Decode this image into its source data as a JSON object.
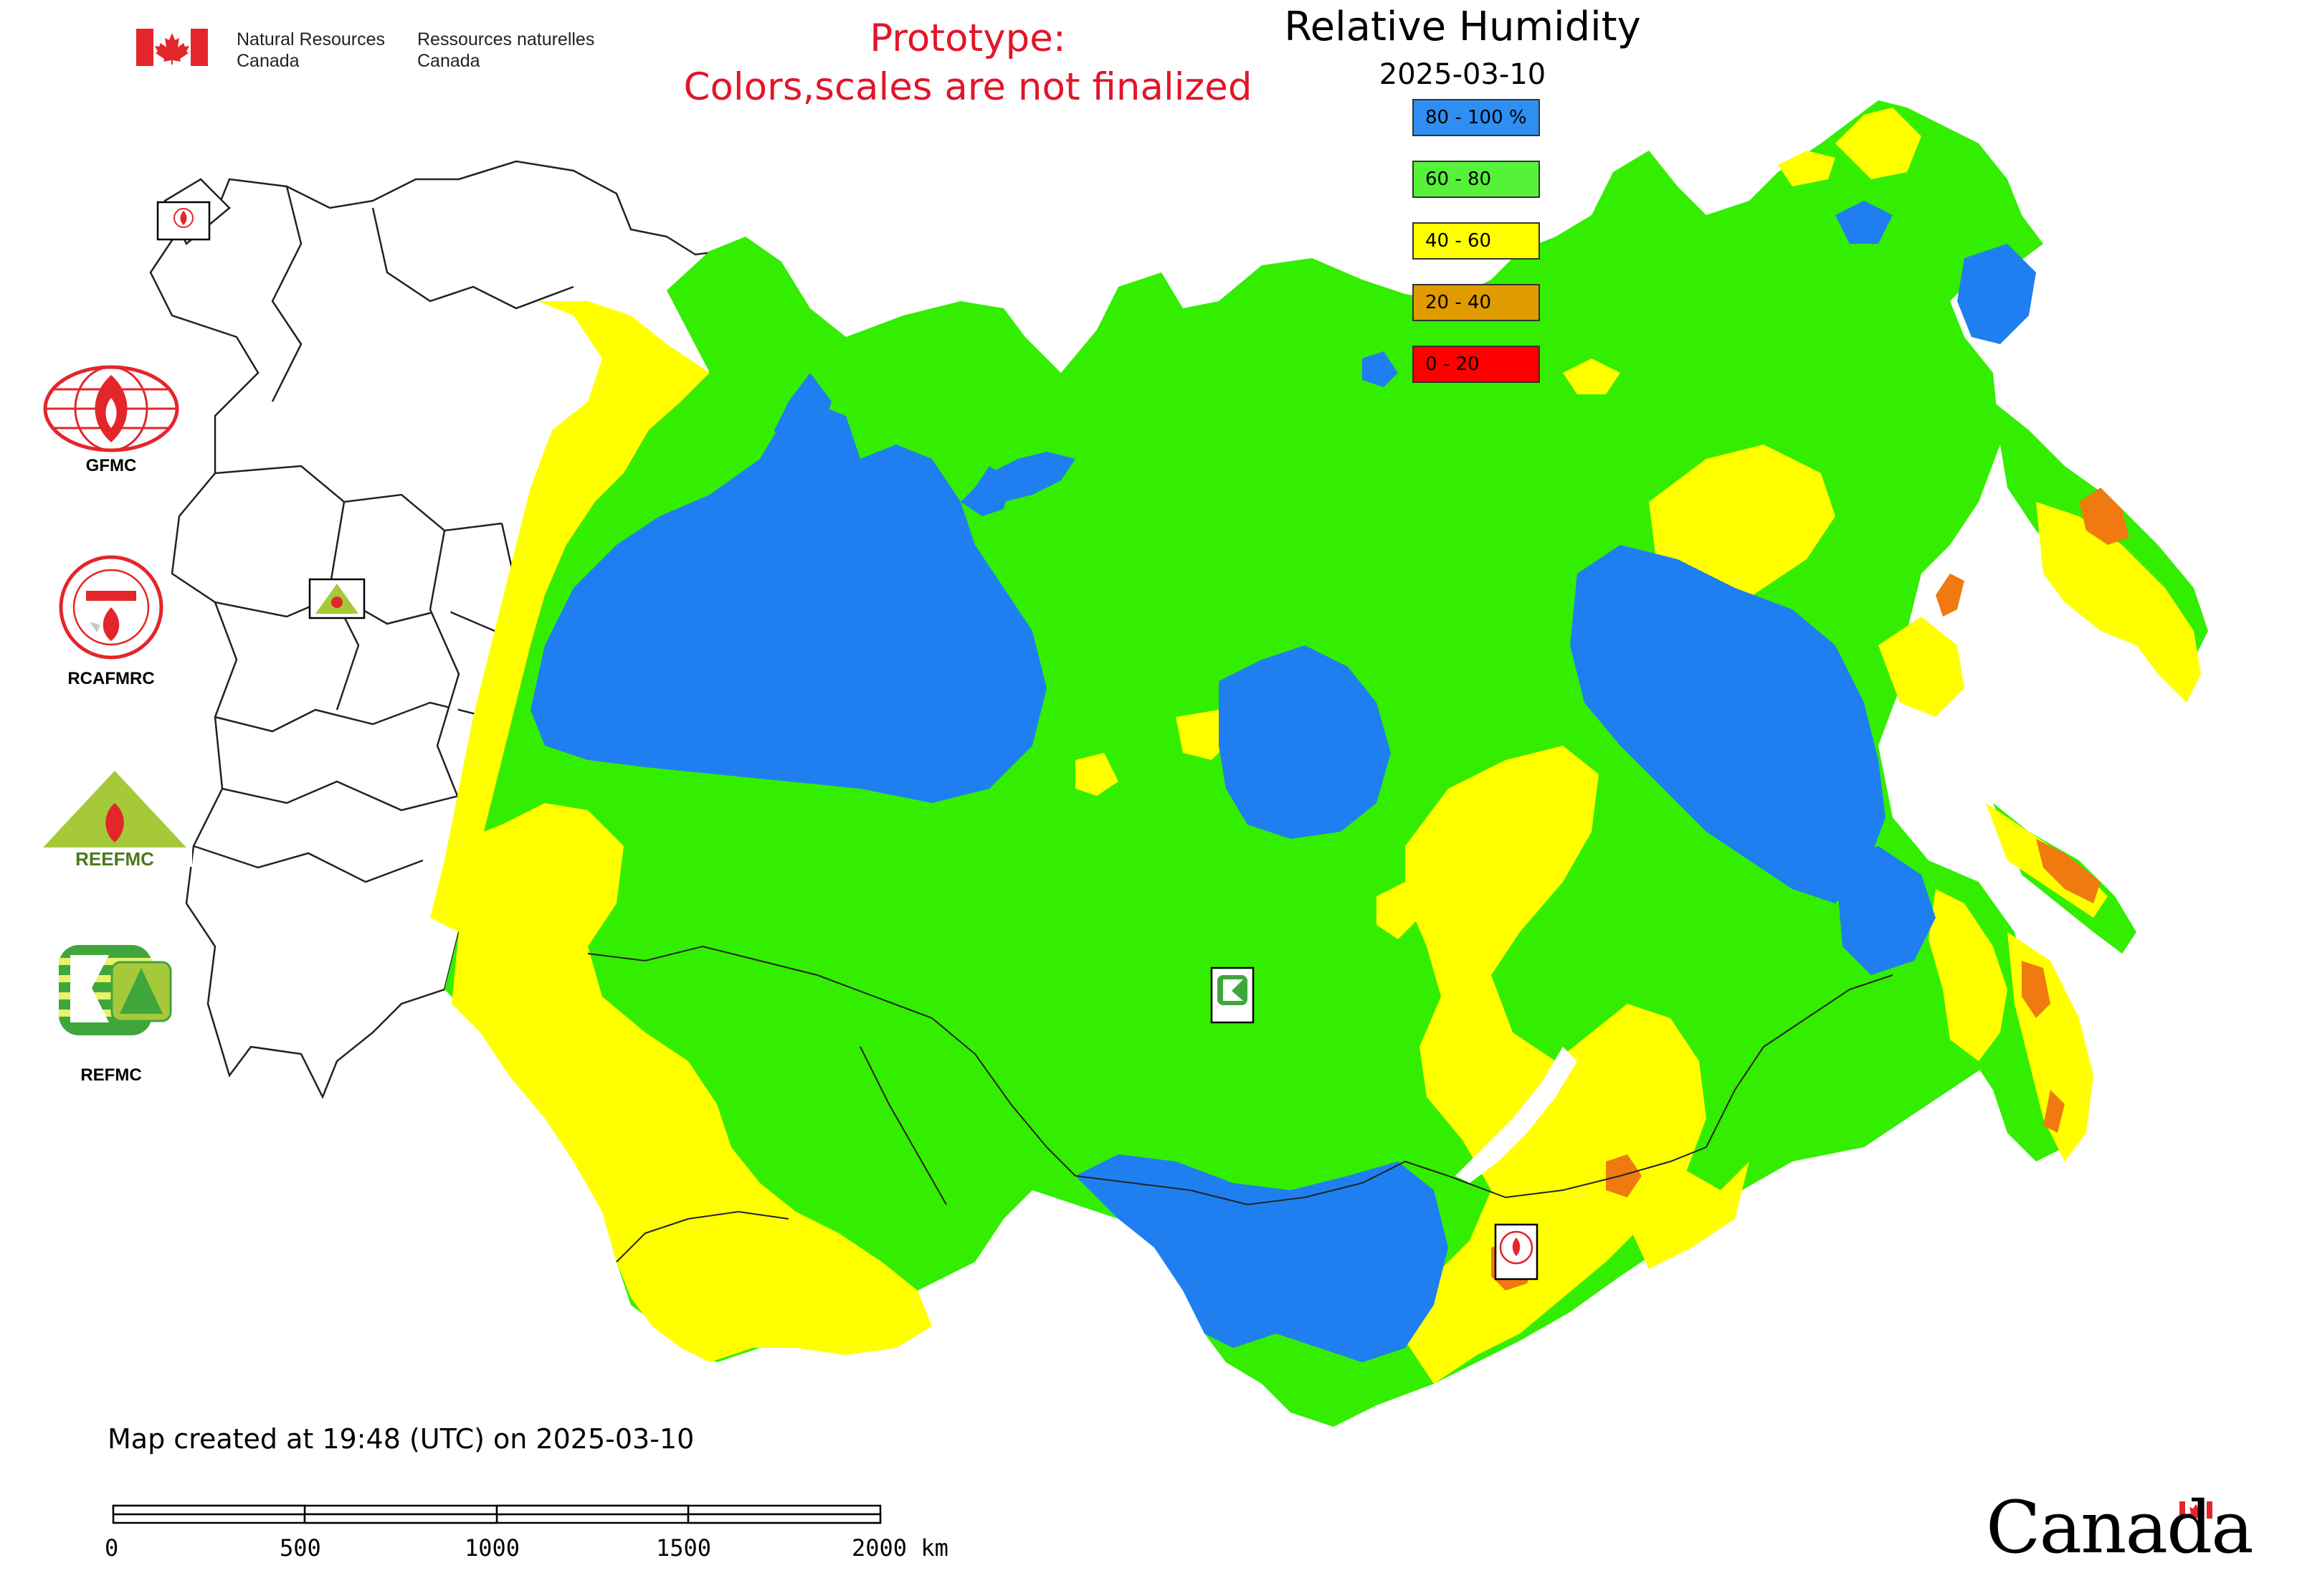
{
  "header": {
    "agency_en_line1": "Natural Resources",
    "agency_en_line2": "Canada",
    "agency_fr_line1": "Ressources naturelles",
    "agency_fr_line2": "Canada",
    "prototype_line1": "Prototype:",
    "prototype_line2": "Colors,scales are not finalized",
    "title": "Relative Humidity",
    "date": "2025-03-10"
  },
  "legend": [
    {
      "label": "80 - 100 %",
      "color": "#2f8ef2"
    },
    {
      "label": "60 - 80",
      "color": "#55f23a"
    },
    {
      "label": "40 - 60",
      "color": "#ffff00"
    },
    {
      "label": "20 - 40",
      "color": "#e09b00"
    },
    {
      "label": "0 - 20",
      "color": "#ff0000"
    }
  ],
  "colors": {
    "humidity_80_100": "#1f7ff0",
    "humidity_60_80": "#33ee00",
    "humidity_40_60": "#ffff00",
    "humidity_20_40": "#f07a10",
    "prototype_text": "#e2152a",
    "flag_red": "#e3262b"
  },
  "logos": [
    {
      "icon": "gfmc-logo-icon",
      "label": "GFMC"
    },
    {
      "icon": "rcafmrc-logo-icon",
      "label": "RCAFMRC"
    },
    {
      "icon": "reefmc-logo-icon",
      "label": "REEFMC"
    },
    {
      "icon": "refmc-logo-icon",
      "label": "REFMC"
    }
  ],
  "map_markers": [
    {
      "icon": "gfmc-marker-icon",
      "label": "GFMC"
    },
    {
      "icon": "reefmc-marker-icon",
      "label": "REEFMC"
    },
    {
      "icon": "refmc-marker-icon",
      "label": "REFMC"
    },
    {
      "icon": "rcafmrc-marker-icon",
      "label": "RCAFMRC"
    }
  ],
  "footer": {
    "created": "Map created at 19:48 (UTC) on 2025-03-10",
    "scale_ticks": [
      "0",
      "500",
      "1000",
      "1500",
      "2000 km"
    ],
    "wordmark": "Canada"
  }
}
